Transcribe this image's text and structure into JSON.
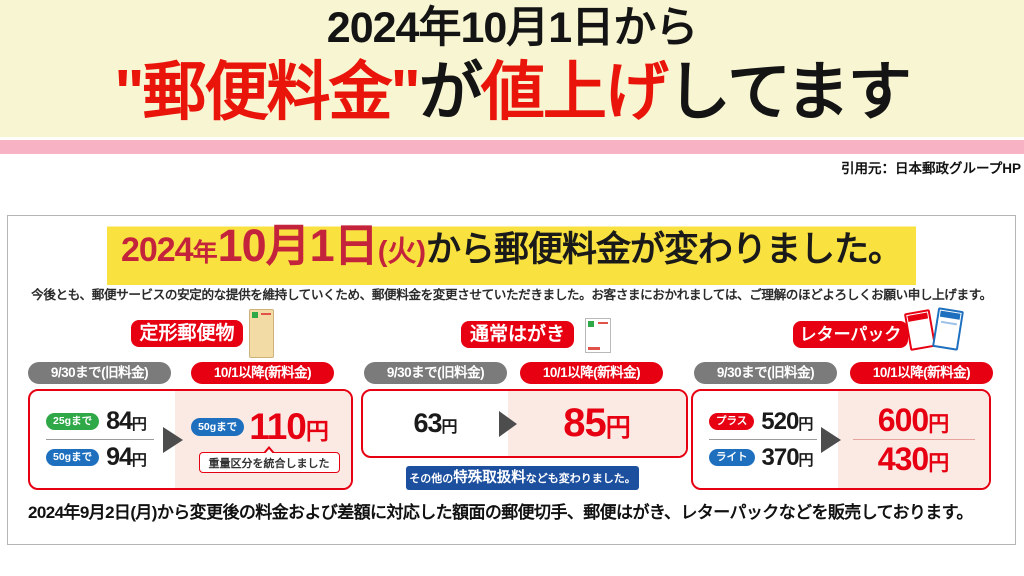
{
  "banner": {
    "line1": "2024年10月1日から",
    "line2": {
      "red1": "\"郵便料金\"",
      "black1": "が",
      "red2": "値上げ",
      "black2": "してます"
    }
  },
  "citation": "引用元：日本郵政グループHP",
  "notice": {
    "headline": {
      "y2024": "2024",
      "year": "年",
      "date": "10月1日",
      "weekday": "(火)",
      "rest": "から郵便料金が変わりました。"
    },
    "description": "今後とも、郵便サービスの安定的な提供を維持していくため、郵便料金を変更させていただきました。お客さまにおかれましては、ご理解のほどよろしくお願い申し上げます。",
    "labels": {
      "old": "9/30まで(旧料金)",
      "new": "10/1以降(新料金)"
    },
    "sections": [
      {
        "title": "定形郵便物",
        "rows_old": [
          {
            "tag": "25gまで",
            "amount": "84",
            "unit": "円"
          },
          {
            "tag": "50gまで",
            "amount": "94",
            "unit": "円"
          }
        ],
        "new": {
          "tag": "50gまで",
          "amount": "110",
          "unit": "円"
        },
        "note": "重量区分を統合しました"
      },
      {
        "title": "通常はがき",
        "old": {
          "amount": "63",
          "unit": "円"
        },
        "new": {
          "amount": "85",
          "unit": "円"
        },
        "extra_note": {
          "pre": "その他の",
          "em": "特殊取扱料",
          "post": "なども変わりました。"
        }
      },
      {
        "title": "レターパック",
        "rows_old": [
          {
            "tag": "プラス",
            "amount": "520",
            "unit": "円"
          },
          {
            "tag": "ライト",
            "amount": "370",
            "unit": "円"
          }
        ],
        "rows_new": [
          {
            "amount": "600",
            "unit": "円"
          },
          {
            "amount": "430",
            "unit": "円"
          }
        ]
      }
    ],
    "footer": "2024年9月2日(月)から変更後の料金および差額に対応した額面の郵便切手、郵便はがき、レターパックなどを販売しております。"
  },
  "icons": {
    "section1": "long-envelope",
    "section2": "postcard",
    "section3": "letterpack-red-and-blue",
    "arrows": "right-arrow"
  },
  "colors": {
    "banner_cream": "#f8f6d2",
    "stripe_pink": "#f7b2c4",
    "title_red": "#e9140a",
    "highlight_yellow": "#f9e13f",
    "headline_crimson": "#c4233c",
    "accent_red": "#e60012",
    "pill_gray": "#7b7b7b",
    "pill_green": "#2fa848",
    "pill_blue": "#1e70bf",
    "panel_pink": "#fbeae4",
    "note_blue": "#1c4f9e"
  }
}
